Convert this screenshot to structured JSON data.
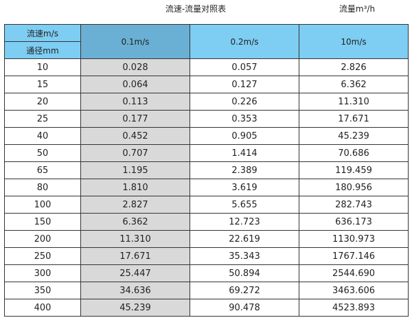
{
  "title": "流速-流量对照表",
  "unit_label": "流量m³/h",
  "colors": {
    "header": "#7ecdf3",
    "header_highlight": "#6ab0d4",
    "highlight_column": "#d9d9d9"
  },
  "table": {
    "corner_top": "流速m/s",
    "corner_bottom": "通径mm",
    "columns": [
      "0.1m/s",
      "0.2m/s",
      "10m/s"
    ],
    "rows": [
      [
        "10",
        "0.028",
        "0.057",
        "2.826"
      ],
      [
        "15",
        "0.064",
        "0.127",
        "6.362"
      ],
      [
        "20",
        "0.113",
        "0.226",
        "11.310"
      ],
      [
        "25",
        "0.177",
        "0.353",
        "17.671"
      ],
      [
        "40",
        "0.452",
        "0.905",
        "45.239"
      ],
      [
        "50",
        "0.707",
        "1.414",
        "70.686"
      ],
      [
        "65",
        "1.195",
        "2.389",
        "119.459"
      ],
      [
        "80",
        "1.810",
        "3.619",
        "180.956"
      ],
      [
        "100",
        "2.827",
        "5.655",
        "282.743"
      ],
      [
        "150",
        "6.362",
        "12.723",
        "636.173"
      ],
      [
        "200",
        "11.310",
        "22.619",
        "1130.973"
      ],
      [
        "250",
        "17.671",
        "35.343",
        "1767.146"
      ],
      [
        "300",
        "25.447",
        "50.894",
        "2544.690"
      ],
      [
        "350",
        "34.636",
        "69.272",
        "3463.606"
      ],
      [
        "400",
        "45.239",
        "90.478",
        "4523.893"
      ]
    ]
  }
}
